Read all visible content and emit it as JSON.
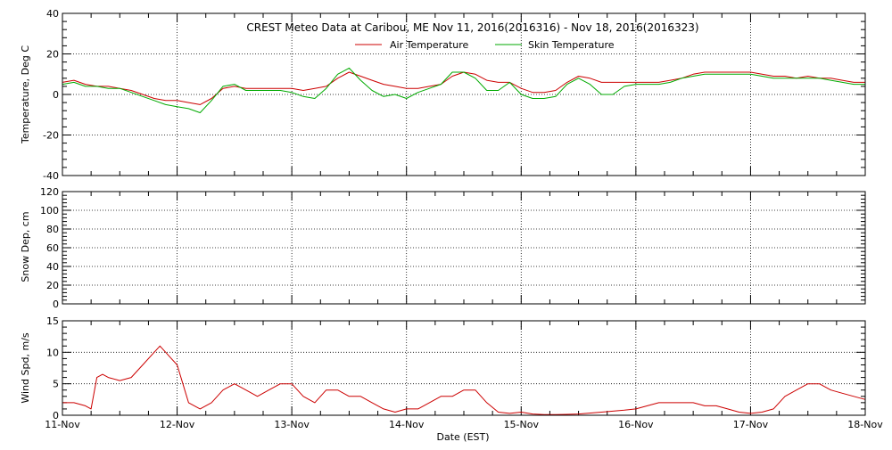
{
  "chart_data": [
    {
      "type": "line",
      "title": "CREST Meteo Data at Caribou, ME   Nov 11, 2016(2016316) - Nov 18, 2016(2016323)",
      "ylabel": "Temperature, Deg C",
      "ylim": [
        -40,
        40
      ],
      "yticks": [
        -40,
        -20,
        0,
        20,
        40
      ],
      "xlim": [
        0,
        7
      ],
      "grid": true,
      "legend": "top-center",
      "series": [
        {
          "name": "Air Temperature",
          "color": "#cc0000",
          "x": [
            0,
            0.1,
            0.2,
            0.3,
            0.4,
            0.5,
            0.6,
            0.7,
            0.8,
            0.9,
            1.0,
            1.1,
            1.2,
            1.3,
            1.4,
            1.5,
            1.6,
            1.7,
            1.8,
            1.9,
            2.0,
            2.1,
            2.2,
            2.3,
            2.4,
            2.5,
            2.6,
            2.7,
            2.8,
            2.9,
            3.0,
            3.1,
            3.2,
            3.3,
            3.4,
            3.5,
            3.6,
            3.7,
            3.8,
            3.9,
            4.0,
            4.1,
            4.2,
            4.3,
            4.4,
            4.5,
            4.6,
            4.7,
            4.8,
            4.9,
            5.0,
            5.1,
            5.2,
            5.3,
            5.4,
            5.5,
            5.6,
            5.7,
            5.8,
            5.9,
            6.0,
            6.1,
            6.2,
            6.3,
            6.4,
            6.5,
            6.6,
            6.7,
            6.8,
            6.9,
            7.0
          ],
          "values": [
            6,
            7,
            5,
            4,
            4,
            3,
            2,
            0,
            -2,
            -3,
            -3,
            -4,
            -5,
            -2,
            3,
            4,
            3,
            3,
            3,
            3,
            3,
            2,
            3,
            4,
            8,
            11,
            9,
            7,
            5,
            4,
            3,
            3,
            4,
            5,
            9,
            11,
            10,
            7,
            6,
            6,
            3,
            1,
            1,
            2,
            6,
            9,
            8,
            6,
            6,
            6,
            6,
            6,
            6,
            7,
            8,
            10,
            11,
            11,
            11,
            11,
            11,
            10,
            9,
            9,
            8,
            9,
            8,
            8,
            7,
            6,
            6
          ]
        },
        {
          "name": "Skin Temperature",
          "color": "#00aa00",
          "x": [
            0,
            0.1,
            0.2,
            0.3,
            0.4,
            0.5,
            0.6,
            0.7,
            0.8,
            0.9,
            1.0,
            1.1,
            1.2,
            1.3,
            1.4,
            1.5,
            1.6,
            1.7,
            1.8,
            1.9,
            2.0,
            2.1,
            2.2,
            2.3,
            2.4,
            2.5,
            2.6,
            2.7,
            2.8,
            2.9,
            3.0,
            3.1,
            3.2,
            3.3,
            3.4,
            3.5,
            3.6,
            3.7,
            3.8,
            3.9,
            4.0,
            4.1,
            4.2,
            4.3,
            4.4,
            4.5,
            4.6,
            4.7,
            4.8,
            4.9,
            5.0,
            5.1,
            5.2,
            5.3,
            5.4,
            5.5,
            5.6,
            5.7,
            5.8,
            5.9,
            6.0,
            6.1,
            6.2,
            6.3,
            6.4,
            6.5,
            6.6,
            6.7,
            6.8,
            6.9,
            7.0
          ],
          "values": [
            5,
            6,
            4,
            4,
            3,
            3,
            1,
            -1,
            -3,
            -5,
            -6,
            -7,
            -9,
            -3,
            4,
            5,
            2,
            2,
            2,
            2,
            1,
            -1,
            -2,
            3,
            10,
            13,
            7,
            2,
            -1,
            0,
            -2,
            1,
            3,
            5,
            11,
            11,
            8,
            2,
            2,
            6,
            0,
            -2,
            -2,
            -1,
            5,
            8,
            5,
            0,
            0,
            4,
            5,
            5,
            5,
            6,
            8,
            9,
            10,
            10,
            10,
            10,
            10,
            9,
            8,
            8,
            8,
            8,
            8,
            7,
            6,
            5,
            5
          ]
        }
      ]
    },
    {
      "type": "line",
      "ylabel": "Snow Dep, cm",
      "ylim": [
        0,
        120
      ],
      "yticks": [
        0,
        20,
        40,
        60,
        80,
        100,
        120
      ],
      "xlim": [
        0,
        7
      ],
      "grid": true,
      "series": []
    },
    {
      "type": "line",
      "ylabel": "Wind Spd, m/s",
      "ylim": [
        0,
        15
      ],
      "yticks": [
        0,
        5,
        10,
        15
      ],
      "xlim": [
        0,
        7
      ],
      "grid": true,
      "xlabel": "Date (EST)",
      "xticks": [
        {
          "x": 0,
          "label": "11-Nov"
        },
        {
          "x": 1,
          "label": "12-Nov"
        },
        {
          "x": 2,
          "label": "13-Nov"
        },
        {
          "x": 3,
          "label": "14-Nov"
        },
        {
          "x": 4,
          "label": "15-Nov"
        },
        {
          "x": 5,
          "label": "16-Nov"
        },
        {
          "x": 6,
          "label": "17-Nov"
        },
        {
          "x": 7,
          "label": "18-Nov"
        }
      ],
      "series": [
        {
          "color": "#cc0000",
          "x": [
            0,
            0.1,
            0.2,
            0.25,
            0.3,
            0.35,
            0.4,
            0.5,
            0.6,
            0.7,
            0.8,
            0.85,
            0.9,
            0.95,
            1.0,
            1.05,
            1.1,
            1.2,
            1.3,
            1.4,
            1.5,
            1.6,
            1.7,
            1.8,
            1.9,
            2.0,
            2.1,
            2.2,
            2.3,
            2.4,
            2.5,
            2.6,
            2.7,
            2.8,
            2.9,
            3.0,
            3.1,
            3.2,
            3.3,
            3.4,
            3.5,
            3.6,
            3.7,
            3.8,
            3.9,
            4.0,
            4.1,
            4.2,
            4.3,
            4.5,
            4.7,
            4.9,
            5.0,
            5.1,
            5.2,
            5.3,
            5.4,
            5.5,
            5.6,
            5.7,
            5.8,
            5.9,
            6.0,
            6.1,
            6.2,
            6.3,
            6.4,
            6.5,
            6.6,
            6.7,
            6.8,
            6.9,
            7.0
          ],
          "values": [
            2,
            2,
            1.5,
            1,
            6,
            6.5,
            6,
            5.5,
            6,
            8,
            10,
            11,
            10,
            9,
            8,
            5,
            2,
            1,
            2,
            4,
            5,
            4,
            3,
            4,
            5,
            5,
            3,
            2,
            4,
            4,
            3,
            3,
            2,
            1,
            0.5,
            1,
            1,
            2,
            3,
            3,
            4,
            4,
            2,
            0.5,
            0.3,
            0.5,
            0.2,
            0.1,
            0.1,
            0.2,
            0.5,
            0.8,
            1,
            1.5,
            2,
            2,
            2,
            2,
            1.5,
            1.5,
            1,
            0.5,
            0.3,
            0.5,
            1,
            3,
            4,
            5,
            5,
            4,
            3.5,
            3,
            2.5
          ]
        }
      ]
    }
  ]
}
